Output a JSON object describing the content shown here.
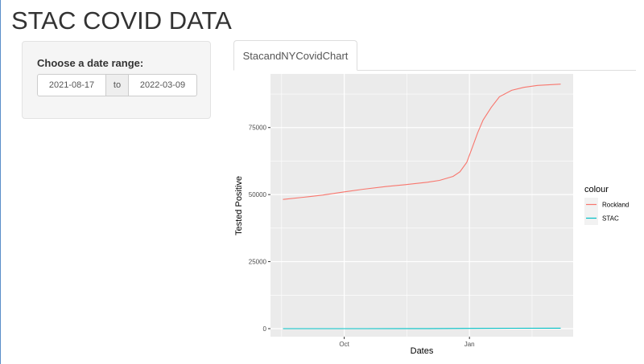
{
  "app": {
    "title": "STAC COVID DATA"
  },
  "sidebar": {
    "label": "Choose a date range:",
    "date_start": "2021-08-17",
    "date_separator": "to",
    "date_end": "2022-03-09"
  },
  "tabs": [
    {
      "label": "StacandNYCovidChart",
      "active": true
    }
  ],
  "chart_data": {
    "type": "line",
    "xlabel": "Dates",
    "ylabel": "Tested Positive",
    "x_range": [
      "2021-08-17",
      "2022-03-09"
    ],
    "ylim": [
      -3000,
      95000
    ],
    "x_ticks": [
      {
        "date": "2021-10-01",
        "label": "Oct"
      },
      {
        "date": "2022-01-01",
        "label": "Jan"
      }
    ],
    "y_ticks": [
      0,
      25000,
      50000,
      75000
    ],
    "grid": true,
    "background": "#ebebeb",
    "legend": {
      "title": "colour",
      "position": "right"
    },
    "series": [
      {
        "name": "Rockland",
        "color": "#f8766d",
        "points": [
          [
            "2021-08-17",
            48200
          ],
          [
            "2021-09-01",
            49000
          ],
          [
            "2021-09-15",
            49800
          ],
          [
            "2021-10-01",
            51000
          ],
          [
            "2021-10-15",
            52000
          ],
          [
            "2021-11-01",
            53000
          ],
          [
            "2021-11-15",
            53700
          ],
          [
            "2021-12-01",
            54600
          ],
          [
            "2021-12-10",
            55300
          ],
          [
            "2021-12-20",
            56800
          ],
          [
            "2021-12-25",
            58500
          ],
          [
            "2021-12-30",
            62000
          ],
          [
            "2022-01-03",
            67500
          ],
          [
            "2022-01-07",
            73000
          ],
          [
            "2022-01-11",
            77800
          ],
          [
            "2022-01-17",
            82500
          ],
          [
            "2022-01-23",
            86500
          ],
          [
            "2022-02-01",
            88900
          ],
          [
            "2022-02-10",
            90000
          ],
          [
            "2022-02-20",
            90700
          ],
          [
            "2022-03-09",
            91200
          ]
        ]
      },
      {
        "name": "STAC",
        "color": "#00bfc4",
        "points": [
          [
            "2021-08-17",
            0
          ],
          [
            "2021-10-15",
            10
          ],
          [
            "2021-12-01",
            30
          ],
          [
            "2022-01-01",
            90
          ],
          [
            "2022-02-01",
            150
          ],
          [
            "2022-03-09",
            170
          ]
        ]
      }
    ]
  }
}
